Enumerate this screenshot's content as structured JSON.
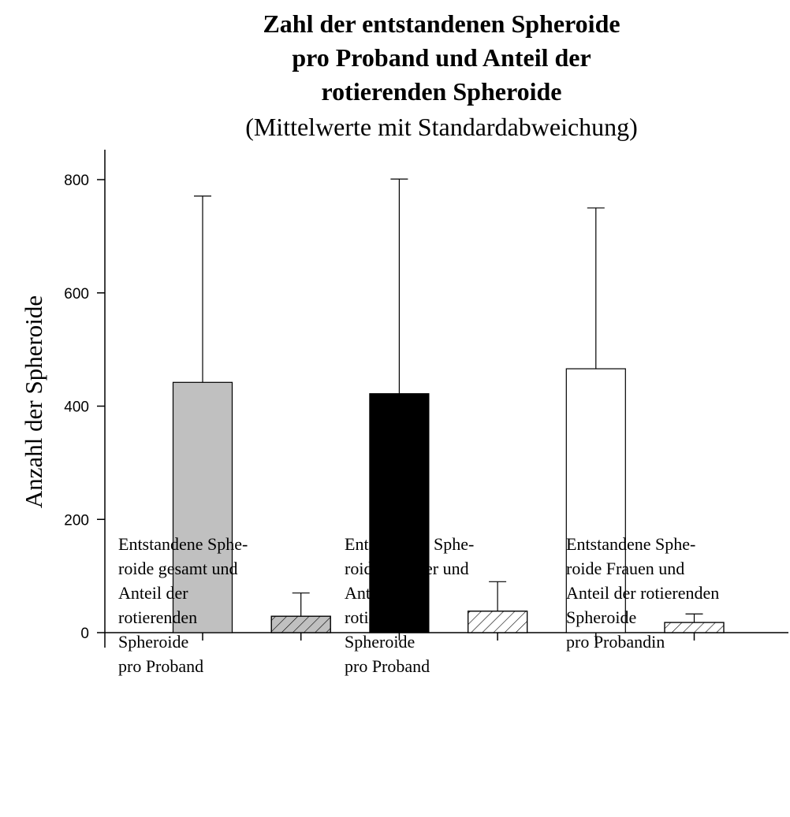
{
  "chart_data": {
    "type": "bar",
    "title": [
      "Zahl der entstandenen Spheroide",
      "pro Proband und Anteil der",
      "rotierenden Spheroide"
    ],
    "subtitle": "(Mittelwerte mit Standardabweichung)",
    "y_label": "Anzahl der Spheroide",
    "groups": [
      [
        "Entstandene Sphe-",
        "roide gesamt und",
        "Anteil der",
        "rotierenden",
        "Spheroide",
        "pro Proband"
      ],
      [
        "Entstandene Sphe-",
        "roide Männer und",
        "Anteil der",
        "rotierenden",
        "Spheroide",
        "pro Proband"
      ],
      [
        "Entstandene Sphe-",
        "roide Frauen und",
        "Anteil der rotierenden",
        "Spheroide",
        "pro Probandin"
      ]
    ],
    "values": [
      442,
      29,
      422,
      38,
      466,
      18
    ],
    "errors": [
      329,
      41,
      379,
      52,
      284,
      15
    ],
    "colors": [
      "#c0c0c0",
      "#c0c0c0",
      "#000000",
      "#ffffff",
      "#ffffff",
      "#ffffff"
    ],
    "hatched": [
      false,
      true,
      false,
      true,
      false,
      true
    ],
    "ylim": [
      0,
      800
    ],
    "yticks": [
      0,
      200,
      400,
      600,
      800
    ]
  }
}
